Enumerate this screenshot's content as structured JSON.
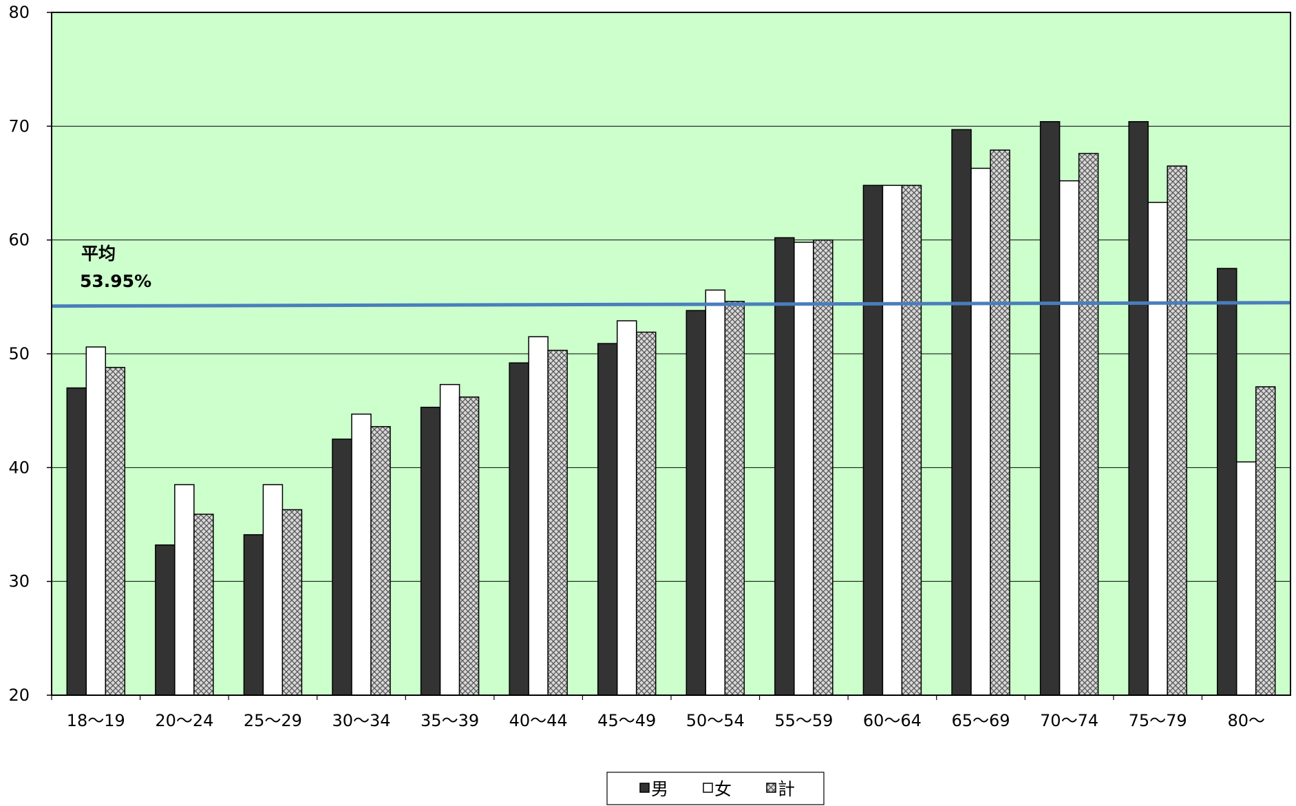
{
  "chart_data": {
    "type": "bar",
    "title": "",
    "xlabel": "",
    "ylabel": "",
    "ylim": [
      20,
      80
    ],
    "yticks": [
      20,
      30,
      40,
      50,
      60,
      70,
      80
    ],
    "grid": true,
    "legend_position": "bottom-center",
    "categories": [
      "18～19",
      "20～24",
      "25～29",
      "30～34",
      "35～39",
      "40～44",
      "45～49",
      "50～54",
      "55～59",
      "60～64",
      "65～69",
      "70～74",
      "75～79",
      "80～"
    ],
    "series": [
      {
        "name": "男",
        "pattern": "solid-dark",
        "color": "#333333",
        "values": [
          47.0,
          33.2,
          34.1,
          42.5,
          45.3,
          49.2,
          50.9,
          53.8,
          60.2,
          64.8,
          69.7,
          70.4,
          70.4,
          57.5
        ]
      },
      {
        "name": "女",
        "pattern": "white",
        "color": "#ffffff",
        "values": [
          50.6,
          38.5,
          38.5,
          44.7,
          47.3,
          51.5,
          52.9,
          55.6,
          59.8,
          64.8,
          66.3,
          65.2,
          63.3,
          40.5
        ]
      },
      {
        "name": "計",
        "pattern": "crosshatch",
        "color": "#b0b0b0",
        "values": [
          48.8,
          35.9,
          36.3,
          43.6,
          46.2,
          50.3,
          51.9,
          54.6,
          60.0,
          64.8,
          67.9,
          67.6,
          66.5,
          47.1
        ]
      }
    ],
    "average": {
      "label": "平均",
      "value_text": "53.95%",
      "value": 53.95,
      "color": "#4a7ebb"
    },
    "plot_background": "#ccffcc"
  }
}
